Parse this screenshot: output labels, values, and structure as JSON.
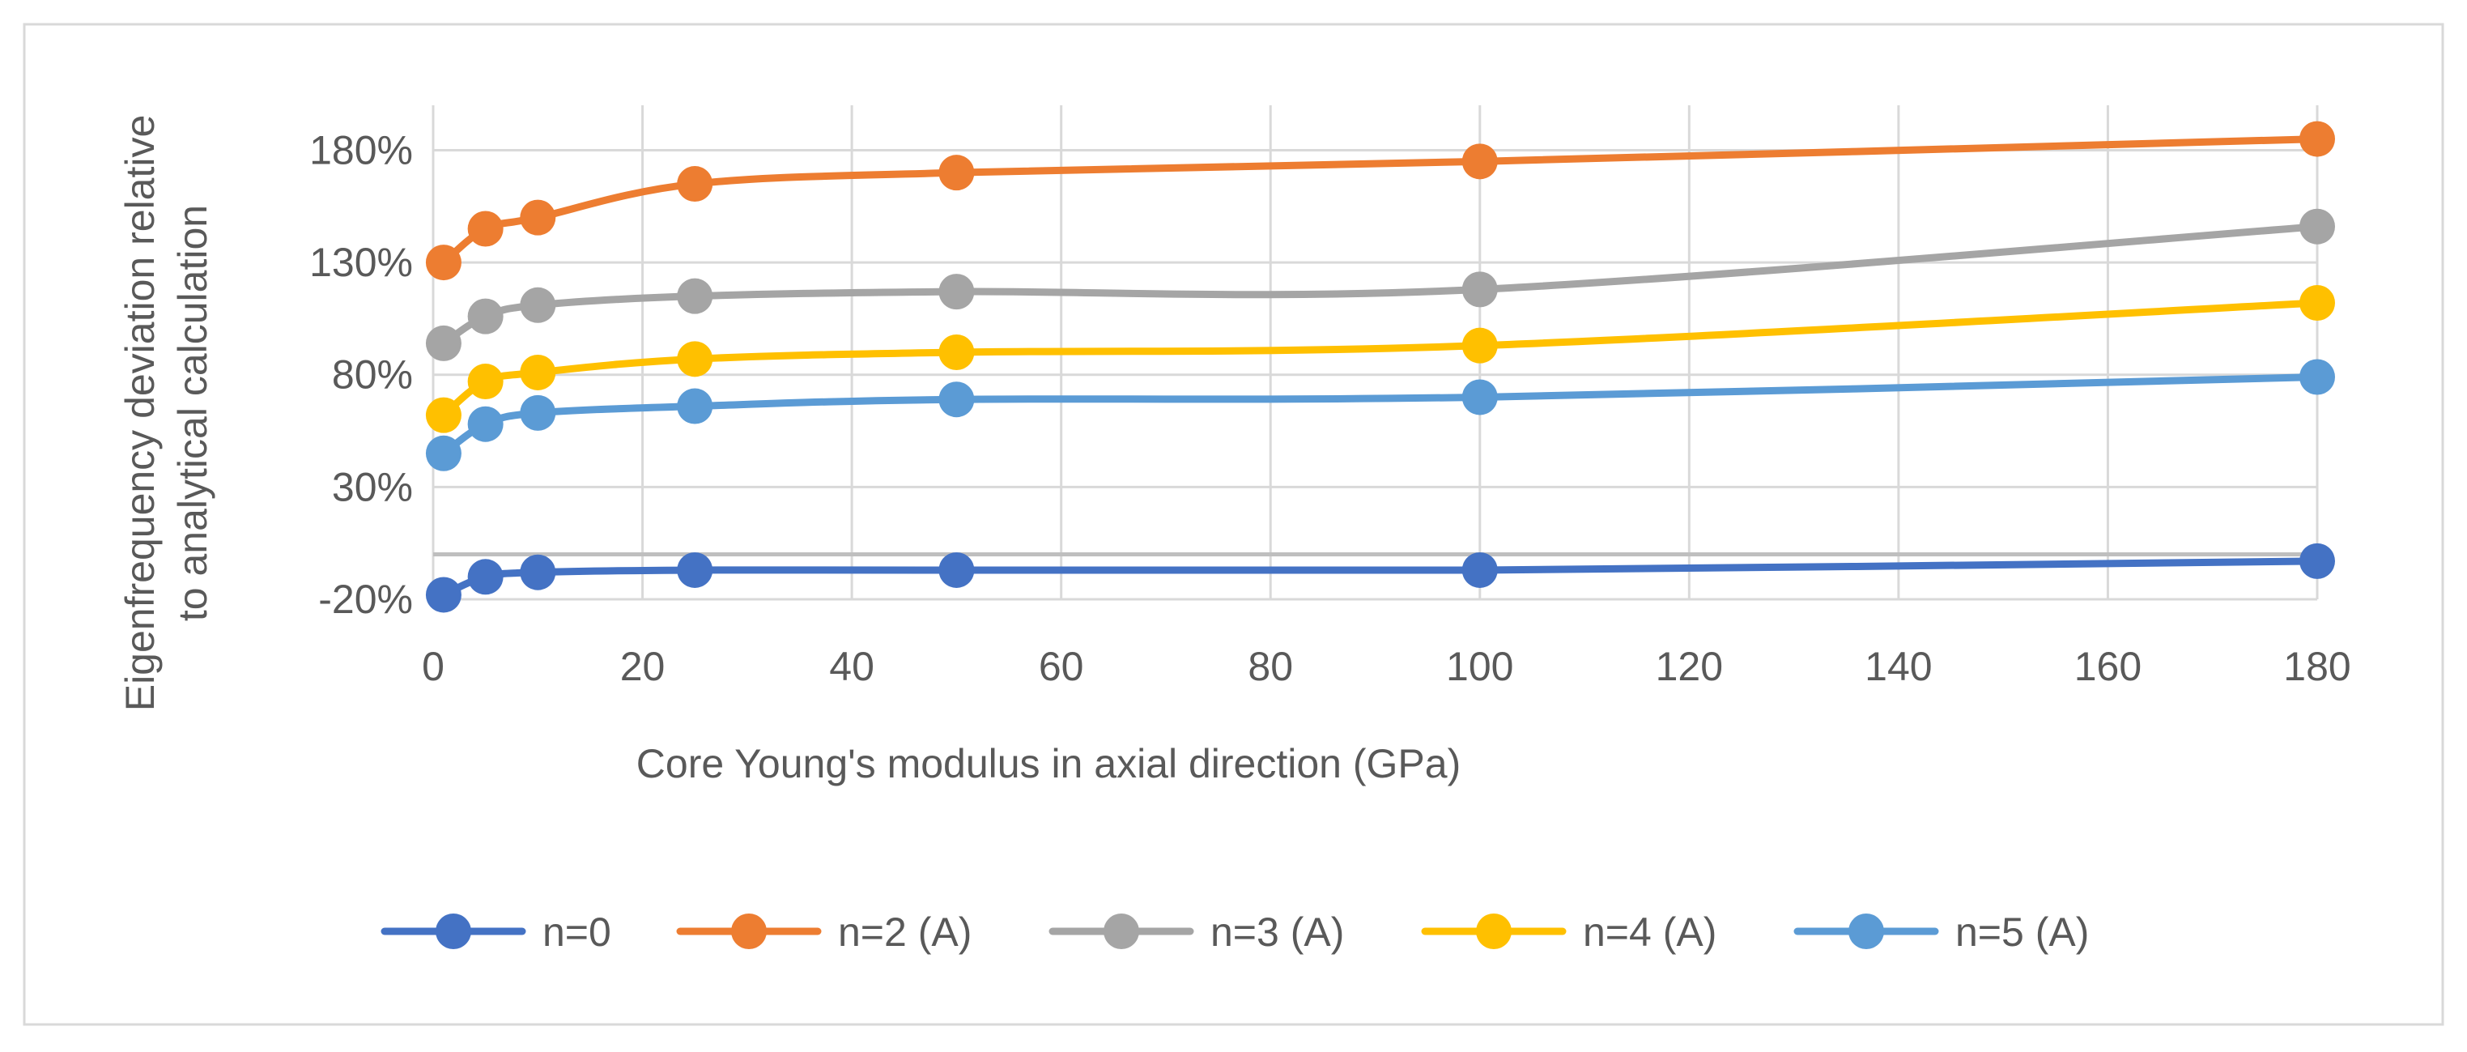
{
  "chart_data": {
    "type": "line",
    "title": "",
    "xlabel": "Core Young's modulus in axial direction (GPa)",
    "ylabel": [
      "Eigenfrequency deviation relative",
      "to analytical calculation"
    ],
    "xlim": [
      0,
      180
    ],
    "ylim": [
      -20,
      200
    ],
    "xticks": [
      0,
      20,
      40,
      60,
      80,
      100,
      120,
      140,
      160,
      180
    ],
    "yticks": [
      -20,
      30,
      80,
      130,
      180
    ],
    "ytick_labels": [
      "-20%",
      "30%",
      "80%",
      "130%",
      "180%"
    ],
    "grid": true,
    "legend_position": "bottom",
    "x": [
      1,
      5,
      10,
      25,
      50,
      100,
      180
    ],
    "series": [
      {
        "name": "n=0",
        "color": "#4472C4",
        "values": [
          -18,
          -10,
          -8,
          -7,
          -7,
          -7,
          -3
        ]
      },
      {
        "name": "n=2 (A)",
        "color": "#ED7D31",
        "values": [
          130,
          145,
          150,
          165,
          170,
          175,
          185
        ]
      },
      {
        "name": "n=3 (A)",
        "color": "#A5A5A5",
        "values": [
          94,
          106,
          111,
          115,
          117,
          118,
          146
        ]
      },
      {
        "name": "n=4 (A)",
        "color": "#FFC000",
        "values": [
          62,
          77,
          81,
          87,
          90,
          93,
          112
        ]
      },
      {
        "name": "n=5 (A)",
        "color": "#5B9BD5",
        "values": [
          45,
          58,
          63,
          66,
          69,
          70,
          79
        ]
      }
    ]
  }
}
